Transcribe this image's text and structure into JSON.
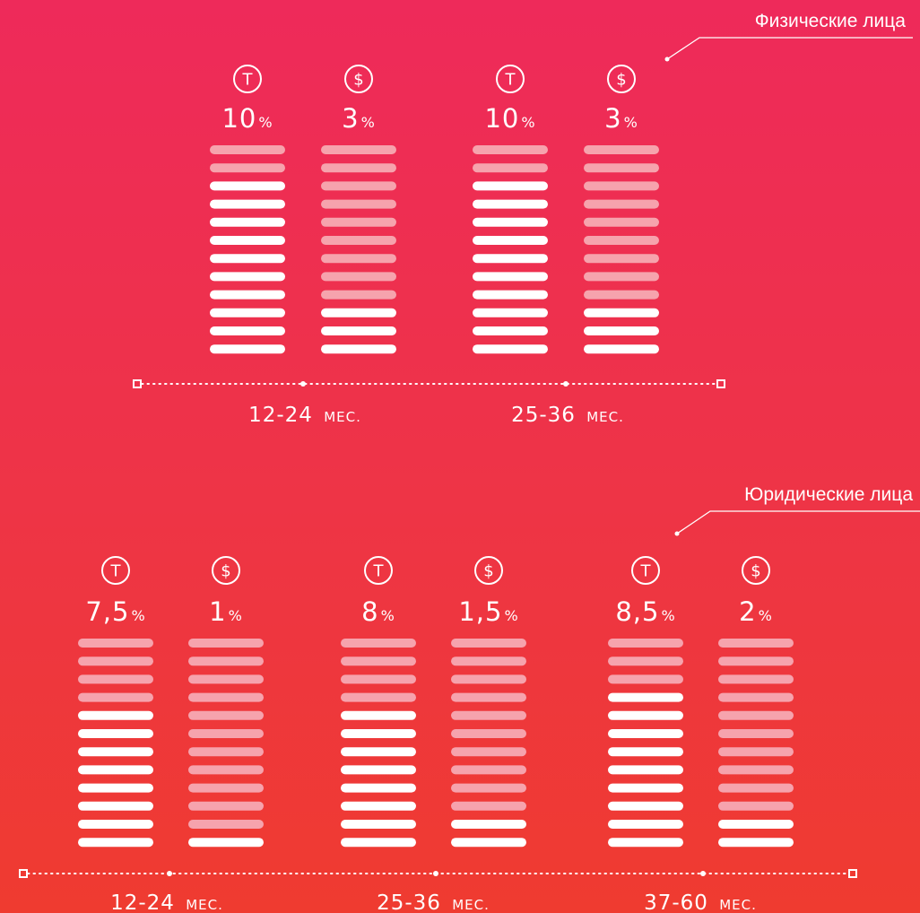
{
  "chart_data": [
    {
      "type": "bar",
      "title": "Физические лица",
      "max_value": 12,
      "unit_suffix": "%",
      "period_unit": "мес.",
      "currency_icons": {
        "tenge": "Т",
        "usd": "$"
      },
      "groups": [
        {
          "period": "12-24",
          "bars": [
            {
              "currency": "tenge",
              "icon": "tenge-icon",
              "label": "10",
              "value": 10
            },
            {
              "currency": "usd",
              "icon": "dollar-icon",
              "label": "3",
              "value": 3
            }
          ]
        },
        {
          "period": "25-36",
          "bars": [
            {
              "currency": "tenge",
              "icon": "tenge-icon",
              "label": "10",
              "value": 10
            },
            {
              "currency": "usd",
              "icon": "dollar-icon",
              "label": "3",
              "value": 3
            }
          ]
        }
      ]
    },
    {
      "type": "bar",
      "title": "Юридические лица",
      "max_value": 12,
      "unit_suffix": "%",
      "period_unit": "мес.",
      "currency_icons": {
        "tenge": "Т",
        "usd": "$"
      },
      "groups": [
        {
          "period": "12-24",
          "bars": [
            {
              "currency": "tenge",
              "icon": "tenge-icon",
              "label": "7,5",
              "value": 7.5
            },
            {
              "currency": "usd",
              "icon": "dollar-icon",
              "label": "1",
              "value": 1
            }
          ]
        },
        {
          "period": "25-36",
          "bars": [
            {
              "currency": "tenge",
              "icon": "tenge-icon",
              "label": "8",
              "value": 8
            },
            {
              "currency": "usd",
              "icon": "dollar-icon",
              "label": "1,5",
              "value": 1.5
            }
          ]
        },
        {
          "period": "37-60",
          "bars": [
            {
              "currency": "tenge",
              "icon": "tenge-icon",
              "label": "8,5",
              "value": 8.5
            },
            {
              "currency": "usd",
              "icon": "dollar-icon",
              "label": "2",
              "value": 2
            }
          ]
        }
      ]
    }
  ],
  "colors": {
    "segment_on": "#ffffff",
    "segment_off": "#f6a3ad",
    "axis": "#ffffff"
  }
}
